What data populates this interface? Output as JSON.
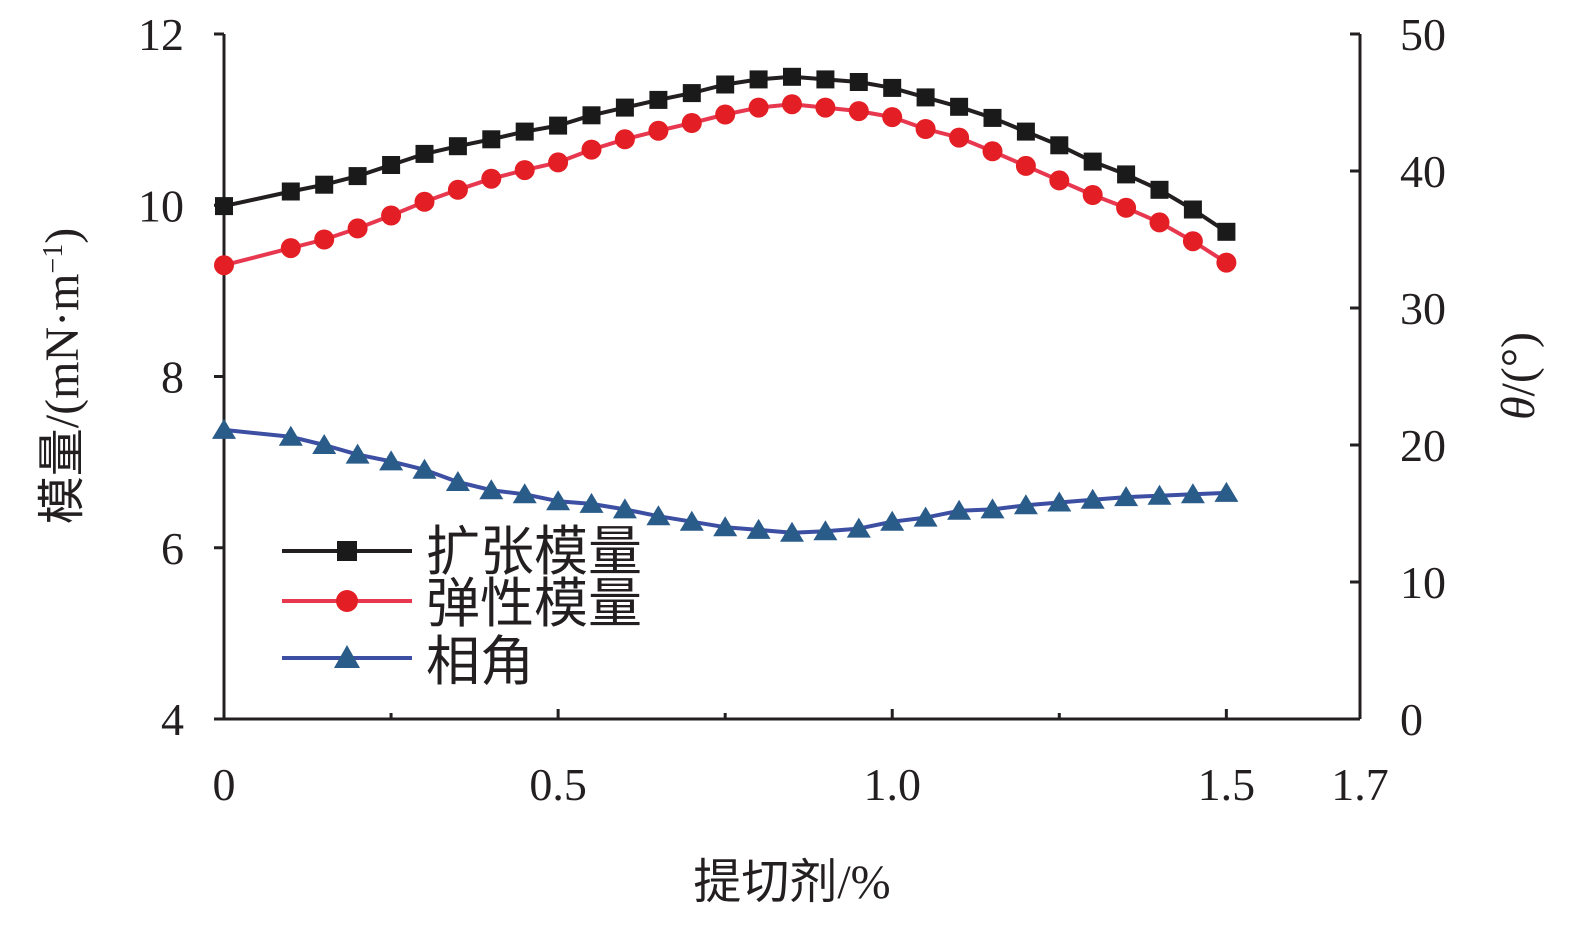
{
  "chart_data": {
    "type": "line",
    "xlabel": "提切剂/%",
    "ylabel_left": "模量/(mN·m",
    "ylabel_left_sup": "−1",
    "ylabel_left_close": ")",
    "ylabel_right_theta": "θ",
    "ylabel_right_unit": "/(°)",
    "xlim": [
      0,
      1.7
    ],
    "ylim_left": [
      4,
      12
    ],
    "ylim_right": [
      0,
      50
    ],
    "x_ticks": [
      {
        "value": 0,
        "label": "0"
      },
      {
        "value": 0.5,
        "label": "0.5"
      },
      {
        "value": 1.0,
        "label": "1.0"
      },
      {
        "value": 1.5,
        "label": "1.5"
      },
      {
        "value": 1.7,
        "label": "1.7"
      }
    ],
    "y_left_ticks": [
      {
        "value": 4,
        "label": "4"
      },
      {
        "value": 6,
        "label": "6"
      },
      {
        "value": 8,
        "label": "8"
      },
      {
        "value": 10,
        "label": "10"
      },
      {
        "value": 12,
        "label": "12"
      }
    ],
    "y_right_ticks": [
      {
        "value": 0,
        "label": "0"
      },
      {
        "value": 10,
        "label": "10"
      },
      {
        "value": 20,
        "label": "20"
      },
      {
        "value": 30,
        "label": "30"
      },
      {
        "value": 40,
        "label": "40"
      },
      {
        "value": 50,
        "label": "50"
      }
    ],
    "legend_position": "bottom-left",
    "series": [
      {
        "name": "扩张模量",
        "axis": "left",
        "marker": "square",
        "line_color": "#231f20",
        "marker_fill": "#1a1a1a",
        "x": [
          0,
          0.1,
          0.15,
          0.2,
          0.25,
          0.3,
          0.35,
          0.4,
          0.45,
          0.5,
          0.55,
          0.6,
          0.65,
          0.7,
          0.75,
          0.8,
          0.85,
          0.9,
          0.95,
          1.0,
          1.05,
          1.1,
          1.15,
          1.2,
          1.25,
          1.3,
          1.35,
          1.4,
          1.45,
          1.5
        ],
        "values": [
          9.99,
          10.16,
          10.24,
          10.34,
          10.47,
          10.6,
          10.69,
          10.77,
          10.86,
          10.93,
          11.05,
          11.14,
          11.23,
          11.31,
          11.41,
          11.47,
          11.5,
          11.47,
          11.44,
          11.37,
          11.26,
          11.15,
          11.02,
          10.86,
          10.7,
          10.51,
          10.36,
          10.18,
          9.95,
          9.69
        ]
      },
      {
        "name": "弹性模量",
        "axis": "left",
        "marker": "circle",
        "line_color": "#e8384f",
        "marker_fill": "#e31e24",
        "x": [
          0,
          0.1,
          0.15,
          0.2,
          0.25,
          0.3,
          0.35,
          0.4,
          0.45,
          0.5,
          0.55,
          0.6,
          0.65,
          0.7,
          0.75,
          0.8,
          0.85,
          0.9,
          0.95,
          1.0,
          1.05,
          1.1,
          1.15,
          1.2,
          1.25,
          1.3,
          1.35,
          1.4,
          1.45,
          1.5
        ],
        "values": [
          9.3,
          9.5,
          9.6,
          9.73,
          9.88,
          10.04,
          10.18,
          10.31,
          10.41,
          10.5,
          10.65,
          10.77,
          10.87,
          10.96,
          11.06,
          11.14,
          11.18,
          11.14,
          11.1,
          11.03,
          10.89,
          10.79,
          10.63,
          10.46,
          10.29,
          10.12,
          9.97,
          9.8,
          9.58,
          9.33
        ]
      },
      {
        "name": "相角",
        "axis": "right",
        "marker": "triangle",
        "line_color": "#3d4fa3",
        "marker_fill": "#2a5c8a",
        "x": [
          0,
          0.1,
          0.15,
          0.2,
          0.25,
          0.3,
          0.35,
          0.4,
          0.45,
          0.5,
          0.55,
          0.6,
          0.65,
          0.7,
          0.75,
          0.8,
          0.85,
          0.9,
          0.95,
          1.0,
          1.05,
          1.1,
          1.15,
          1.2,
          1.25,
          1.3,
          1.35,
          1.4,
          1.45,
          1.5
        ],
        "values": [
          21.1,
          20.6,
          20.0,
          19.3,
          18.8,
          18.2,
          17.3,
          16.7,
          16.4,
          15.9,
          15.7,
          15.3,
          14.8,
          14.4,
          14.0,
          13.8,
          13.6,
          13.7,
          13.9,
          14.4,
          14.7,
          15.2,
          15.3,
          15.6,
          15.8,
          16.0,
          16.2,
          16.3,
          16.4,
          16.5
        ]
      }
    ]
  }
}
